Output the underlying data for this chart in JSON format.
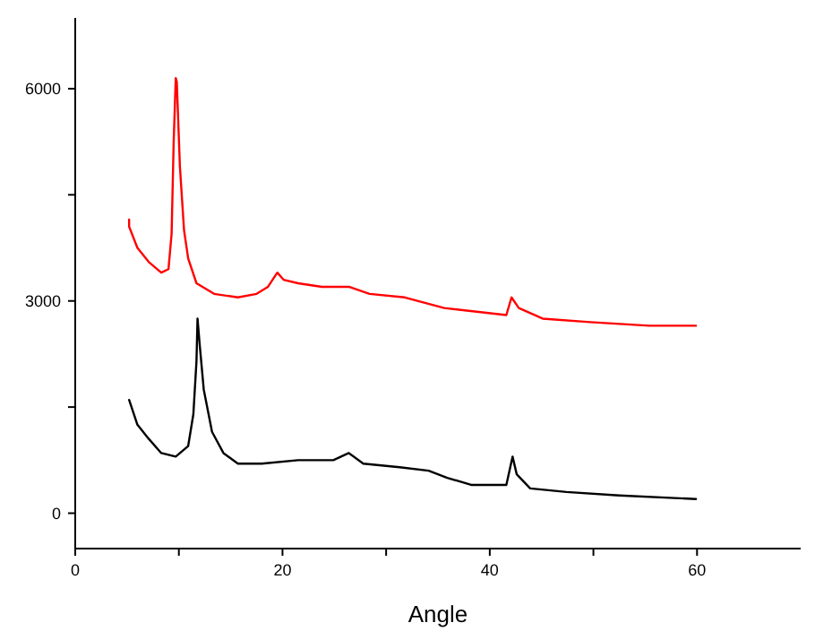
{
  "chart_data": {
    "type": "line",
    "xlabel": "Angle",
    "xlim": [
      0,
      70
    ],
    "ylim": [
      -500,
      7000
    ],
    "xticks": [
      0,
      {
        "value": 10,
        "label": null
      },
      20,
      {
        "value": 30,
        "label": null
      },
      40,
      {
        "value": 50,
        "label": null
      },
      60
    ],
    "yticks": [
      0,
      {
        "value": 1500,
        "label": null
      },
      3000,
      {
        "value": 4500,
        "label": null
      },
      6000
    ],
    "grid": false,
    "series": [
      {
        "color": "#ff0000",
        "x": [
          5.2,
          5.2,
          6.0,
          7.1,
          8.3,
          9.0,
          9.3,
          9.5,
          9.7,
          9.8,
          10.1,
          10.5,
          10.9,
          11.7,
          13.4,
          15.7,
          17.5,
          18.6,
          19.5,
          20.1,
          21.5,
          23.8,
          26.4,
          28.4,
          31.8,
          35.6,
          41.6,
          42.1,
          42.8,
          45.1,
          49.7,
          55.4,
          59.9
        ],
        "values": [
          4150,
          4050,
          3750,
          3550,
          3400,
          3450,
          3950,
          5250,
          6150,
          6100,
          4900,
          4000,
          3600,
          3250,
          3100,
          3050,
          3100,
          3200,
          3400,
          3300,
          3250,
          3200,
          3200,
          3100,
          3050,
          2900,
          2800,
          3050,
          2900,
          2750,
          2700,
          2650,
          2650
        ]
      },
      {
        "color": "#000000",
        "x": [
          5.2,
          6.0,
          7.1,
          8.3,
          9.7,
          10.9,
          11.4,
          11.7,
          11.8,
          12.0,
          12.4,
          13.2,
          14.3,
          15.7,
          18.0,
          21.5,
          24.9,
          26.4,
          27.8,
          31.3,
          34.1,
          35.9,
          38.2,
          41.6,
          42.2,
          42.6,
          43.9,
          47.4,
          52.5,
          59.9
        ],
        "values": [
          1600,
          1250,
          1050,
          850,
          800,
          950,
          1400,
          2150,
          2750,
          2400,
          1750,
          1150,
          850,
          700,
          700,
          750,
          750,
          850,
          700,
          650,
          600,
          500,
          400,
          400,
          800,
          550,
          350,
          300,
          250,
          200
        ]
      }
    ]
  }
}
